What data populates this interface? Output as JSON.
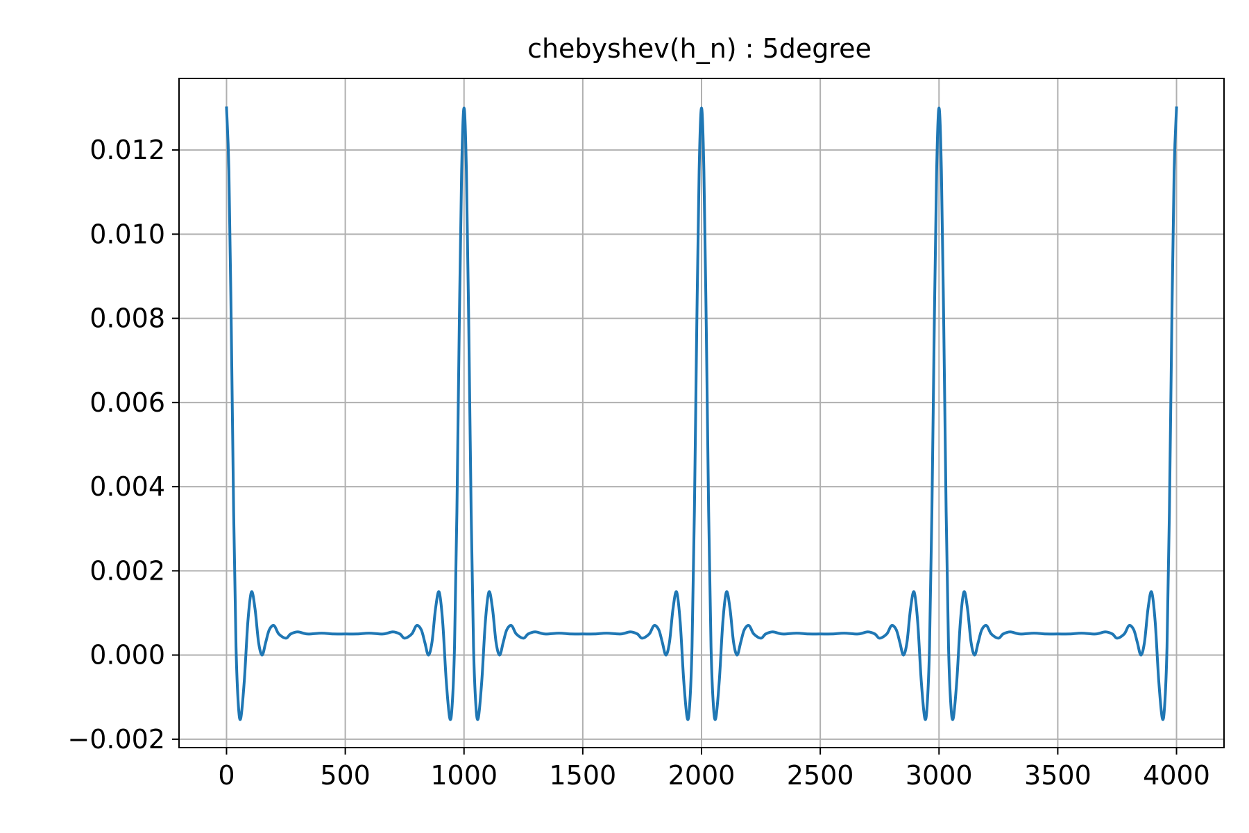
{
  "chart_data": {
    "type": "line",
    "title": "chebyshev(h_n) : 5degree",
    "xlabel": "",
    "ylabel": "",
    "xlim": [
      -200,
      4200
    ],
    "ylim": [
      -0.0022,
      0.0137
    ],
    "xticks": [
      0,
      500,
      1000,
      1500,
      2000,
      2500,
      3000,
      3500,
      4000
    ],
    "xtick_labels": [
      "0",
      "500",
      "1000",
      "1500",
      "2000",
      "2500",
      "3000",
      "3500",
      "4000"
    ],
    "yticks": [
      -0.002,
      0.0,
      0.002,
      0.004,
      0.006,
      0.008,
      0.01,
      0.012
    ],
    "ytick_labels": [
      "−0.002",
      "0.000",
      "0.002",
      "0.004",
      "0.006",
      "0.008",
      "0.010",
      "0.012"
    ],
    "grid": true,
    "series": [
      {
        "color": "#1f77b4",
        "period": 1000,
        "x_range": [
          0,
          4000
        ],
        "one_period": {
          "x": [
            0,
            10,
            20,
            30,
            40,
            50,
            60,
            75,
            90,
            105,
            120,
            135,
            150,
            165,
            180,
            200,
            220,
            250,
            270,
            300,
            340,
            400,
            450,
            500,
            550,
            600,
            660,
            700,
            730,
            750,
            780,
            800,
            820,
            835,
            850,
            865,
            880,
            895,
            910,
            925,
            940,
            950,
            960,
            970,
            980,
            990,
            1000
          ],
          "y": [
            0.013,
            0.0115,
            0.0078,
            0.0034,
            0.0002,
            -0.0012,
            -0.0015,
            -0.0006,
            0.0008,
            0.0015,
            0.0011,
            0.0003,
            0.0,
            0.0003,
            0.0006,
            0.0007,
            0.0005,
            0.0004,
            0.0005,
            0.00055,
            0.0005,
            0.00052,
            0.0005,
            0.0005,
            0.0005,
            0.00052,
            0.0005,
            0.00055,
            0.0005,
            0.0004,
            0.0005,
            0.0007,
            0.0006,
            0.0003,
            0.0,
            0.0003,
            0.0011,
            0.0015,
            0.0008,
            -0.0006,
            -0.0015,
            -0.0012,
            0.0002,
            0.0034,
            0.0078,
            0.0115,
            0.013
          ]
        }
      }
    ]
  }
}
